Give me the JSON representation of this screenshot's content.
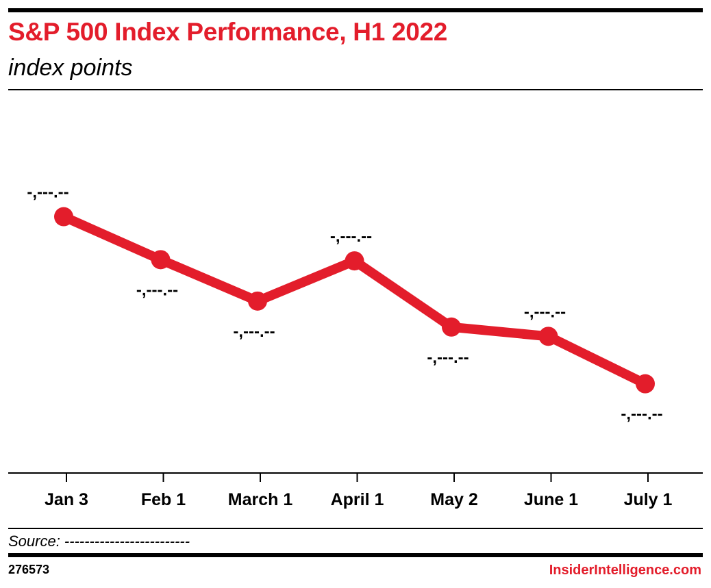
{
  "header": {
    "title": "S&P 500 Index Performance, H1 2022",
    "subtitle": "index points"
  },
  "footer": {
    "source": "Source: -------------------------",
    "chart_id": "276573",
    "brand": "InsiderIntelligence.com"
  },
  "colors": {
    "accent": "#e31d2b",
    "text": "#000000"
  },
  "chart_data": {
    "type": "line",
    "title": "S&P 500 Index Performance, H1 2022",
    "subtitle": "index points",
    "xlabel": "",
    "ylabel": "",
    "categories": [
      "Jan 3",
      "Feb 1",
      "March 1",
      "April 1",
      "May 2",
      "June 1",
      "July 1"
    ],
    "series": [
      {
        "values": [
          4797,
          4547,
          4306,
          4540,
          4155,
          4101,
          3825
        ],
        "data_labels": [
          "-,---.--",
          "-,---.--",
          "-,---.--",
          "-,---.--",
          "-,---.--",
          "-,---.--",
          "-,---.--"
        ],
        "label_side": [
          "above",
          "below",
          "below",
          "above",
          "below",
          "above",
          "below"
        ]
      }
    ],
    "ylim": [
      3310,
      5500
    ],
    "grid": false,
    "legend": "none",
    "line_color": "#e31d2b"
  }
}
